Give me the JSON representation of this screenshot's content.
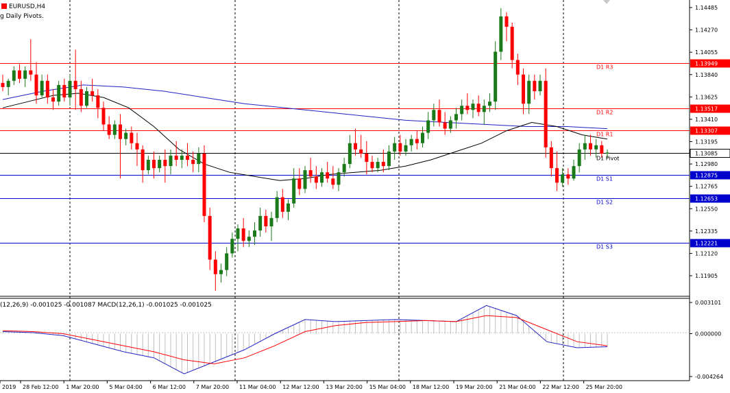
{
  "chart_header": {
    "symbol_label": "EURUSD,H4",
    "indicator_label": "g Daily Pivots."
  },
  "macd_label": "(12,26,9) -0.001025 -0.001087 MACD(12,26,1) -0.001025 -0.001025",
  "colors": {
    "bull": "#1a7a1a",
    "bear": "#ff0000",
    "resistance": "#ff0000",
    "support": "#0000cc",
    "pivot": "#000000",
    "ma_blue": "#2020c0",
    "ma_black": "#000000",
    "macd_main": "#2020c0",
    "macd_signal": "#ff0000",
    "histogram": "#c0c0c0",
    "current_price_tag": "#000000"
  },
  "chart_data": {
    "type": "candlestick",
    "price_ticks": [
      "1.14485",
      "1.14270",
      "1.14055",
      "1.13840",
      "1.13625",
      "1.13410",
      "1.13195",
      "1.12980",
      "1.12765",
      "1.12550",
      "1.12335",
      "1.12120",
      "1.11905"
    ],
    "macd_ticks": [
      "0.003101",
      "0.000000",
      "-0.004264"
    ],
    "time_labels": [
      "2019",
      "28 Feb 12:00",
      "1 Mar 20:00",
      "5 Mar 04:00",
      "6 Mar 12:00",
      "7 Mar 20:00",
      "11 Mar 04:00",
      "12 Mar 12:00",
      "13 Mar 20:00",
      "15 Mar 04:00",
      "18 Mar 12:00",
      "19 Mar 20:00",
      "21 Mar 04:00",
      "22 Mar 12:00",
      "25 Mar 20:00"
    ],
    "levels": [
      {
        "name": "D1 R3",
        "price": 1.13949,
        "tag": "1.13949",
        "kind": "resistance"
      },
      {
        "name": "D1 R2",
        "price": 1.13517,
        "tag": "1.13517",
        "kind": "resistance"
      },
      {
        "name": "D1 R1",
        "price": 1.13307,
        "tag": "1.13307",
        "kind": "resistance"
      },
      {
        "name": "D1 Pivot",
        "price": 1.13085,
        "tag": "1.13085",
        "kind": "pivot"
      },
      {
        "name": "D1 S1",
        "price": 1.12875,
        "tag": "1.12875",
        "kind": "support"
      },
      {
        "name": "D1 S2",
        "price": 1.12653,
        "tag": "1.12653",
        "kind": "support"
      },
      {
        "name": "D1 S3",
        "price": 1.12221,
        "tag": "1.12221",
        "kind": "support"
      }
    ],
    "candles": [
      [
        1.1376,
        1.1384,
        1.1368,
        1.1372
      ],
      [
        1.1372,
        1.138,
        1.1364,
        1.1378
      ],
      [
        1.1378,
        1.1392,
        1.1374,
        1.1388
      ],
      [
        1.1388,
        1.1394,
        1.1376,
        1.138
      ],
      [
        1.138,
        1.1392,
        1.1372,
        1.1388
      ],
      [
        1.1388,
        1.1418,
        1.1378,
        1.1384
      ],
      [
        1.1384,
        1.1396,
        1.1356,
        1.1364
      ],
      [
        1.1364,
        1.1384,
        1.1362,
        1.1378
      ],
      [
        1.1378,
        1.1384,
        1.1356,
        1.1362
      ],
      [
        1.1362,
        1.137,
        1.135,
        1.1358
      ],
      [
        1.1358,
        1.1378,
        1.1354,
        1.1374
      ],
      [
        1.1374,
        1.138,
        1.1358,
        1.1362
      ],
      [
        1.1362,
        1.1384,
        1.1354,
        1.1378
      ],
      [
        1.1378,
        1.1408,
        1.135,
        1.137
      ],
      [
        1.137,
        1.1378,
        1.1348,
        1.1354
      ],
      [
        1.1354,
        1.1372,
        1.1352,
        1.1368
      ],
      [
        1.1368,
        1.138,
        1.1358,
        1.1364
      ],
      [
        1.1364,
        1.137,
        1.1342,
        1.1352
      ],
      [
        1.1352,
        1.1358,
        1.133,
        1.1336
      ],
      [
        1.1336,
        1.1344,
        1.1322,
        1.1326
      ],
      [
        1.1326,
        1.134,
        1.1322,
        1.1336
      ],
      [
        1.1336,
        1.1346,
        1.1284,
        1.1322
      ],
      [
        1.1322,
        1.1332,
        1.1316,
        1.1328
      ],
      [
        1.1328,
        1.1334,
        1.1312,
        1.1318
      ],
      [
        1.1318,
        1.1328,
        1.1296,
        1.1312
      ],
      [
        1.1312,
        1.1316,
        1.128,
        1.1292
      ],
      [
        1.1292,
        1.1306,
        1.1288,
        1.1302
      ],
      [
        1.1302,
        1.131,
        1.1284,
        1.1294
      ],
      [
        1.1294,
        1.1306,
        1.129,
        1.1302
      ],
      [
        1.1302,
        1.1312,
        1.128,
        1.1296
      ],
      [
        1.1296,
        1.1312,
        1.1288,
        1.1306
      ],
      [
        1.1306,
        1.132,
        1.1296,
        1.1302
      ],
      [
        1.1302,
        1.1312,
        1.1294,
        1.1306
      ],
      [
        1.1306,
        1.1318,
        1.1296,
        1.1302
      ],
      [
        1.1302,
        1.131,
        1.129,
        1.1298
      ],
      [
        1.1298,
        1.1314,
        1.129,
        1.1308
      ],
      [
        1.1308,
        1.1316,
        1.1242,
        1.1248
      ],
      [
        1.1248,
        1.1256,
        1.1196,
        1.1206
      ],
      [
        1.1206,
        1.1214,
        1.1176,
        1.1192
      ],
      [
        1.1192,
        1.1202,
        1.1184,
        1.1196
      ],
      [
        1.1196,
        1.1218,
        1.119,
        1.1212
      ],
      [
        1.1212,
        1.1232,
        1.1208,
        1.1226
      ],
      [
        1.1226,
        1.124,
        1.1214,
        1.1236
      ],
      [
        1.1236,
        1.1246,
        1.1218,
        1.1224
      ],
      [
        1.1224,
        1.1234,
        1.1218,
        1.1228
      ],
      [
        1.1228,
        1.1242,
        1.122,
        1.1234
      ],
      [
        1.1234,
        1.1256,
        1.1228,
        1.1248
      ],
      [
        1.1248,
        1.1254,
        1.1232,
        1.1238
      ],
      [
        1.1238,
        1.1252,
        1.1224,
        1.1246
      ],
      [
        1.1246,
        1.1272,
        1.1242,
        1.1266
      ],
      [
        1.1266,
        1.1274,
        1.1246,
        1.1252
      ],
      [
        1.1252,
        1.1264,
        1.1244,
        1.126
      ],
      [
        1.126,
        1.1294,
        1.1256,
        1.1284
      ],
      [
        1.1284,
        1.1294,
        1.1268,
        1.1274
      ],
      [
        1.1274,
        1.1296,
        1.127,
        1.1292
      ],
      [
        1.1292,
        1.1304,
        1.128,
        1.1286
      ],
      [
        1.1286,
        1.1296,
        1.1274,
        1.128
      ],
      [
        1.128,
        1.1294,
        1.1276,
        1.129
      ],
      [
        1.129,
        1.13,
        1.128,
        1.1284
      ],
      [
        1.1284,
        1.1296,
        1.1274,
        1.1278
      ],
      [
        1.1278,
        1.1294,
        1.1272,
        1.129
      ],
      [
        1.129,
        1.1304,
        1.1286,
        1.1298
      ],
      [
        1.1298,
        1.1326,
        1.1294,
        1.1318
      ],
      [
        1.1318,
        1.1332,
        1.1306,
        1.1312
      ],
      [
        1.1312,
        1.1326,
        1.1304,
        1.1308
      ],
      [
        1.1308,
        1.132,
        1.1288,
        1.13
      ],
      [
        1.13,
        1.1306,
        1.129,
        1.1294
      ],
      [
        1.1294,
        1.1304,
        1.129,
        1.13
      ],
      [
        1.13,
        1.1312,
        1.129,
        1.1296
      ],
      [
        1.1296,
        1.1316,
        1.1292,
        1.131
      ],
      [
        1.131,
        1.1324,
        1.1302,
        1.1318
      ],
      [
        1.1318,
        1.1326,
        1.1306,
        1.131
      ],
      [
        1.131,
        1.1322,
        1.1306,
        1.1316
      ],
      [
        1.1316,
        1.1326,
        1.131,
        1.1322
      ],
      [
        1.1322,
        1.133,
        1.1312,
        1.1318
      ],
      [
        1.1318,
        1.1334,
        1.1314,
        1.1328
      ],
      [
        1.1328,
        1.1348,
        1.1322,
        1.134
      ],
      [
        1.134,
        1.1356,
        1.1334,
        1.135
      ],
      [
        1.135,
        1.136,
        1.1334,
        1.1338
      ],
      [
        1.1338,
        1.1348,
        1.1326,
        1.1332
      ],
      [
        1.1332,
        1.1344,
        1.1328,
        1.134
      ],
      [
        1.134,
        1.1352,
        1.1332,
        1.1346
      ],
      [
        1.1346,
        1.136,
        1.134,
        1.1354
      ],
      [
        1.1354,
        1.1366,
        1.1346,
        1.135
      ],
      [
        1.135,
        1.136,
        1.1342,
        1.1356
      ],
      [
        1.1356,
        1.1364,
        1.1344,
        1.1348
      ],
      [
        1.1348,
        1.136,
        1.1336,
        1.1354
      ],
      [
        1.1354,
        1.1366,
        1.1348,
        1.1358
      ],
      [
        1.1358,
        1.1416,
        1.135,
        1.1406
      ],
      [
        1.1406,
        1.1448,
        1.1398,
        1.144
      ],
      [
        1.144,
        1.1444,
        1.1416,
        1.143
      ],
      [
        1.143,
        1.1434,
        1.139,
        1.1398
      ],
      [
        1.1398,
        1.1404,
        1.1374,
        1.1384
      ],
      [
        1.1384,
        1.139,
        1.1346,
        1.1356
      ],
      [
        1.1356,
        1.1384,
        1.1346,
        1.1378
      ],
      [
        1.1378,
        1.1384,
        1.136,
        1.1368
      ],
      [
        1.1368,
        1.1384,
        1.1364,
        1.1378
      ],
      [
        1.1378,
        1.139,
        1.1304,
        1.1314
      ],
      [
        1.1314,
        1.132,
        1.1286,
        1.1294
      ],
      [
        1.1294,
        1.131,
        1.1272,
        1.128
      ],
      [
        1.128,
        1.1294,
        1.1276,
        1.1288
      ],
      [
        1.1288,
        1.1294,
        1.1278,
        1.1284
      ],
      [
        1.1284,
        1.1302,
        1.1282,
        1.1296
      ],
      [
        1.1296,
        1.1318,
        1.129,
        1.1312
      ],
      [
        1.1312,
        1.1326,
        1.1302,
        1.1318
      ],
      [
        1.1318,
        1.1326,
        1.1306,
        1.1312
      ],
      [
        1.1312,
        1.1322,
        1.1304,
        1.1316
      ],
      [
        1.1316,
        1.132,
        1.1304,
        1.1308
      ],
      [
        1.1308,
        1.1312,
        1.1304,
        1.1309
      ]
    ],
    "ma_blue": [
      1.136,
      1.1368,
      1.1374,
      1.1372,
      1.1368,
      1.1362,
      1.1356,
      1.1352,
      1.1348,
      1.1344,
      1.134,
      1.1338,
      1.1336,
      1.1334,
      1.1334,
      1.1332
    ],
    "ma_black": [
      1.1352,
      1.1358,
      1.1364,
      1.1366,
      1.1362,
      1.1352,
      1.1334,
      1.1312,
      1.1298,
      1.129,
      1.1286,
      1.1282,
      1.1284,
      1.1288,
      1.129,
      1.1292,
      1.1296,
      1.1302,
      1.131,
      1.1318,
      1.133,
      1.1338,
      1.1334,
      1.1326,
      1.1322
    ],
    "macd_main": [
      0.0002,
      0.0001,
      -0.0002,
      -0.001,
      -0.0018,
      -0.0024,
      -0.004,
      -0.0028,
      -0.0016,
      0.0,
      0.0014,
      0.0012,
      0.0013,
      0.0014,
      0.0013,
      0.0012,
      0.0028,
      0.0018,
      -0.0008,
      -0.0014,
      -0.0013
    ],
    "macd_signal": [
      0.0003,
      0.0002,
      0.0,
      -0.0006,
      -0.0012,
      -0.0018,
      -0.0026,
      -0.003,
      -0.0024,
      -0.0012,
      0.0002,
      0.0008,
      0.0011,
      0.0012,
      0.0013,
      0.0012,
      0.0018,
      0.0016,
      0.0004,
      -0.0008,
      -0.0012
    ]
  }
}
